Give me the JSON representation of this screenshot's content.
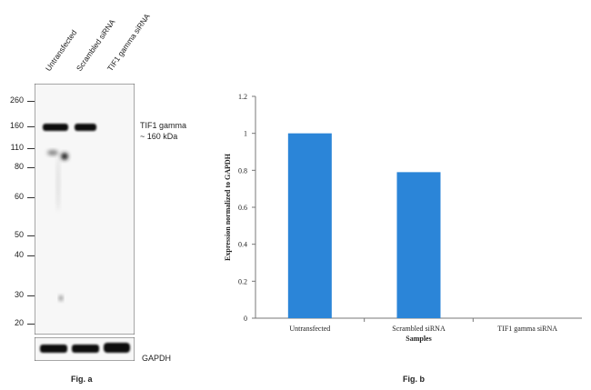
{
  "panel_a": {
    "lane_labels": [
      "Untransfected",
      "Scrambled siRNA",
      "TIF1 gamma siRNA"
    ],
    "mw_markers": [
      "260",
      "160",
      "110",
      "80",
      "60",
      "50",
      "40",
      "30",
      "20"
    ],
    "target_label_line1": "TIF1 gamma",
    "target_label_line2": "~ 160 kDa",
    "loading_control_label": "GAPDH",
    "figure_label": "Fig. a"
  },
  "panel_b": {
    "figure_label": "Fig. b"
  },
  "chart_data": {
    "type": "bar",
    "categories": [
      "Untransfected",
      "Scrambled siRNA",
      "TIF1 gamma siRNA"
    ],
    "values": [
      1.0,
      0.79,
      0.0
    ],
    "xlabel": "Samples",
    "ylabel": "Expression normalized to GAPDH",
    "ylim": [
      0,
      1.2
    ],
    "yticks": [
      "0",
      "0.2",
      "0.4",
      "0.6",
      "0.8",
      "1",
      "1.2"
    ],
    "bar_color": "#2b85d8",
    "grid": false
  }
}
